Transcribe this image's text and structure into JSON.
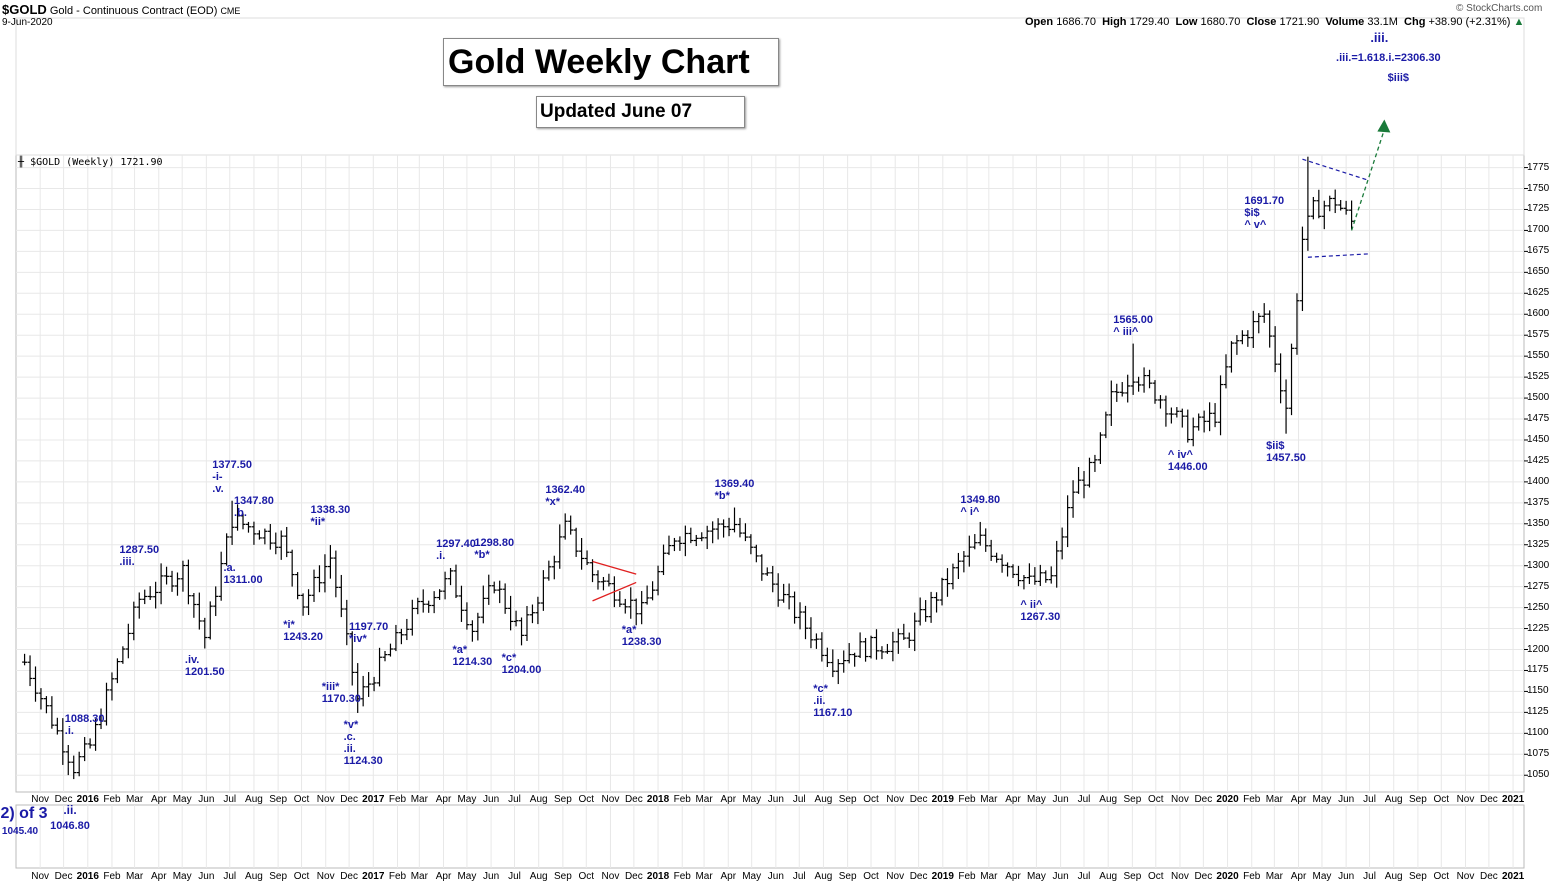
{
  "header": {
    "symbol": "$GOLD",
    "description": "Gold - Continuous Contract (EOD)",
    "exchange": "CME",
    "date": "9-Jun-2020",
    "credit": "© StockCharts.com",
    "open_label": "Open",
    "open": "1686.70",
    "high_label": "High",
    "high": "1729.40",
    "low_label": "Low",
    "low": "1680.70",
    "close_label": "Close",
    "close": "1721.90",
    "volume_label": "Volume",
    "volume": "33.1M",
    "chg_label": "Chg",
    "chg": "+38.90 (+2.31%)"
  },
  "title": "Gold Weekly Chart",
  "subtitle": "Updated June 07",
  "plot_label": "$GOLD (Weekly) 1721.90",
  "lower_panel_text": [
    "2) of 3",
    ".ii."
  ],
  "colors": {
    "bars": "#000000",
    "annotations": "#1a1aa6",
    "triangle": "#e02020",
    "wedge": "#1a1aa6",
    "projection": "#1a7a3a",
    "grid": "#e8e8e8"
  },
  "chart_data": {
    "type": "ohlc",
    "ylim": [
      1030,
      1790
    ],
    "yticks": [
      1050,
      1075,
      1100,
      1125,
      1150,
      1175,
      1200,
      1225,
      1250,
      1275,
      1300,
      1325,
      1350,
      1375,
      1400,
      1425,
      1450,
      1475,
      1500,
      1525,
      1550,
      1575,
      1600,
      1625,
      1650,
      1675,
      1700,
      1725,
      1750,
      1775
    ],
    "xticks": [
      {
        "label": "Nov",
        "date": "2015-11-01"
      },
      {
        "label": "Dec",
        "date": "2015-12-01"
      },
      {
        "label": "2016",
        "date": "2016-01-01",
        "bold": true
      },
      {
        "label": "Feb",
        "date": "2016-02-01"
      },
      {
        "label": "Mar",
        "date": "2016-03-01"
      },
      {
        "label": "Apr",
        "date": "2016-04-01"
      },
      {
        "label": "May",
        "date": "2016-05-01"
      },
      {
        "label": "Jun",
        "date": "2016-06-01"
      },
      {
        "label": "Jul",
        "date": "2016-07-01"
      },
      {
        "label": "Aug",
        "date": "2016-08-01"
      },
      {
        "label": "Sep",
        "date": "2016-09-01"
      },
      {
        "label": "Oct",
        "date": "2016-10-01"
      },
      {
        "label": "Nov",
        "date": "2016-11-01"
      },
      {
        "label": "Dec",
        "date": "2016-12-01"
      },
      {
        "label": "2017",
        "date": "2017-01-01",
        "bold": true
      },
      {
        "label": "Feb",
        "date": "2017-02-01"
      },
      {
        "label": "Mar",
        "date": "2017-03-01"
      },
      {
        "label": "Apr",
        "date": "2017-04-01"
      },
      {
        "label": "May",
        "date": "2017-05-01"
      },
      {
        "label": "Jun",
        "date": "2017-06-01"
      },
      {
        "label": "Jul",
        "date": "2017-07-01"
      },
      {
        "label": "Aug",
        "date": "2017-08-01"
      },
      {
        "label": "Sep",
        "date": "2017-09-01"
      },
      {
        "label": "Oct",
        "date": "2017-10-01"
      },
      {
        "label": "Nov",
        "date": "2017-11-01"
      },
      {
        "label": "Dec",
        "date": "2017-12-01"
      },
      {
        "label": "2018",
        "date": "2018-01-01",
        "bold": true
      },
      {
        "label": "Feb",
        "date": "2018-02-01"
      },
      {
        "label": "Mar",
        "date": "2018-03-01"
      },
      {
        "label": "Apr",
        "date": "2018-04-01"
      },
      {
        "label": "May",
        "date": "2018-05-01"
      },
      {
        "label": "Jun",
        "date": "2018-06-01"
      },
      {
        "label": "Jul",
        "date": "2018-07-01"
      },
      {
        "label": "Aug",
        "date": "2018-08-01"
      },
      {
        "label": "Sep",
        "date": "2018-09-01"
      },
      {
        "label": "Oct",
        "date": "2018-10-01"
      },
      {
        "label": "Nov",
        "date": "2018-11-01"
      },
      {
        "label": "Dec",
        "date": "2018-12-01"
      },
      {
        "label": "2019",
        "date": "2019-01-01",
        "bold": true
      },
      {
        "label": "Feb",
        "date": "2019-02-01"
      },
      {
        "label": "Mar",
        "date": "2019-03-01"
      },
      {
        "label": "Apr",
        "date": "2019-04-01"
      },
      {
        "label": "May",
        "date": "2019-05-01"
      },
      {
        "label": "Jun",
        "date": "2019-06-01"
      },
      {
        "label": "Jul",
        "date": "2019-07-01"
      },
      {
        "label": "Aug",
        "date": "2019-08-01"
      },
      {
        "label": "Sep",
        "date": "2019-09-01"
      },
      {
        "label": "Oct",
        "date": "2019-10-01"
      },
      {
        "label": "Nov",
        "date": "2019-11-01"
      },
      {
        "label": "Dec",
        "date": "2019-12-01"
      },
      {
        "label": "2020",
        "date": "2020-01-01",
        "bold": true
      },
      {
        "label": "Feb",
        "date": "2020-02-01"
      },
      {
        "label": "Mar",
        "date": "2020-03-01"
      },
      {
        "label": "Apr",
        "date": "2020-04-01"
      },
      {
        "label": "May",
        "date": "2020-05-01"
      },
      {
        "label": "Jun",
        "date": "2020-06-01"
      },
      {
        "label": "Jul",
        "date": "2020-07-01"
      },
      {
        "label": "Aug",
        "date": "2020-08-01"
      },
      {
        "label": "Sep",
        "date": "2020-09-01"
      },
      {
        "label": "Oct",
        "date": "2020-10-01"
      },
      {
        "label": "Nov",
        "date": "2020-11-01"
      },
      {
        "label": "Dec",
        "date": "2020-12-01"
      },
      {
        "label": "2021",
        "date": "2021-01-01",
        "bold": true
      }
    ],
    "anchors": [
      {
        "date": "2015-10-12",
        "price": 1185
      },
      {
        "date": "2015-12-14",
        "price": 1060
      },
      {
        "date": "2016-01-04",
        "price": 1085
      },
      {
        "date": "2016-03-07",
        "price": 1260
      },
      {
        "date": "2016-05-02",
        "price": 1295
      },
      {
        "date": "2016-05-30",
        "price": 1215
      },
      {
        "date": "2016-07-04",
        "price": 1355
      },
      {
        "date": "2016-09-05",
        "price": 1330
      },
      {
        "date": "2016-10-03",
        "price": 1255
      },
      {
        "date": "2016-11-07",
        "price": 1310
      },
      {
        "date": "2016-12-12",
        "price": 1140
      },
      {
        "date": "2017-02-27",
        "price": 1250
      },
      {
        "date": "2017-04-10",
        "price": 1285
      },
      {
        "date": "2017-05-08",
        "price": 1225
      },
      {
        "date": "2017-06-05",
        "price": 1280
      },
      {
        "date": "2017-07-10",
        "price": 1215
      },
      {
        "date": "2017-09-04",
        "price": 1345
      },
      {
        "date": "2017-10-09",
        "price": 1290
      },
      {
        "date": "2017-12-11",
        "price": 1245
      },
      {
        "date": "2018-01-22",
        "price": 1335
      },
      {
        "date": "2018-04-09",
        "price": 1350
      },
      {
        "date": "2018-05-14",
        "price": 1295
      },
      {
        "date": "2018-08-13",
        "price": 1185
      },
      {
        "date": "2018-09-10",
        "price": 1200
      },
      {
        "date": "2018-11-12",
        "price": 1210
      },
      {
        "date": "2019-01-28",
        "price": 1310
      },
      {
        "date": "2019-02-18",
        "price": 1330
      },
      {
        "date": "2019-04-22",
        "price": 1280
      },
      {
        "date": "2019-05-20",
        "price": 1285
      },
      {
        "date": "2019-06-17",
        "price": 1390
      },
      {
        "date": "2019-07-15",
        "price": 1420
      },
      {
        "date": "2019-08-05",
        "price": 1500
      },
      {
        "date": "2019-09-02",
        "price": 1530
      },
      {
        "date": "2019-10-07",
        "price": 1500
      },
      {
        "date": "2019-11-11",
        "price": 1460
      },
      {
        "date": "2019-12-16",
        "price": 1480
      },
      {
        "date": "2020-01-06",
        "price": 1560
      },
      {
        "date": "2020-02-17",
        "price": 1600
      },
      {
        "date": "2020-03-16",
        "price": 1490
      },
      {
        "date": "2020-04-06",
        "price": 1690
      },
      {
        "date": "2020-04-20",
        "price": 1725
      },
      {
        "date": "2020-05-18",
        "price": 1735
      },
      {
        "date": "2020-06-08",
        "price": 1710
      }
    ],
    "extremes": [
      {
        "date": "2015-12-14",
        "low": 1045.4
      },
      {
        "date": "2016-07-04",
        "high": 1377.5
      },
      {
        "date": "2016-12-12",
        "low": 1124.3
      },
      {
        "date": "2017-09-04",
        "high": 1362.4
      },
      {
        "date": "2018-04-09",
        "high": 1369.4
      },
      {
        "date": "2018-08-13",
        "low": 1167.1
      },
      {
        "date": "2019-09-02",
        "high": 1565.0
      },
      {
        "date": "2020-03-16",
        "low": 1457.5
      },
      {
        "date": "2020-04-13",
        "high": 1788.0
      }
    ],
    "triangle": [
      [
        [
          "2017-10-09",
          1305
        ],
        [
          "2017-12-04",
          1290
        ]
      ],
      [
        [
          "2017-10-09",
          1258
        ],
        [
          "2017-12-04",
          1280
        ]
      ]
    ],
    "wedge": [
      [
        [
          "2020-04-06",
          1785
        ],
        [
          "2020-06-29",
          1760
        ]
      ],
      [
        [
          "2020-04-13",
          1668
        ],
        [
          "2020-06-29",
          1672
        ]
      ]
    ],
    "projection": [
      [
        "2020-06-08",
        1700
      ],
      [
        "2020-07-20",
        1830
      ]
    ],
    "annotations": [
      {
        "date": "2015-12-28",
        "price": 1088,
        "lines": [
          "1088.30",
          ".i."
        ],
        "side": "above"
      },
      {
        "date": "2016-03-07",
        "price": 1290,
        "lines": [
          "1287.50",
          ".iii."
        ],
        "side": "above"
      },
      {
        "date": "2016-05-30",
        "price": 1202,
        "lines": [
          ".iv.",
          "1201.50"
        ],
        "side": "below"
      },
      {
        "date": "2016-07-04",
        "price": 1377,
        "lines": [
          "1377.50",
          "-i-",
          ".v."
        ],
        "side": "above"
      },
      {
        "date": "2016-08-01",
        "price": 1348,
        "lines": [
          "1347.80",
          ".b."
        ],
        "side": "above"
      },
      {
        "date": "2016-07-18",
        "price": 1311,
        "lines": [
          ".a.",
          "1311.00"
        ],
        "side": "below"
      },
      {
        "date": "2016-10-03",
        "price": 1243,
        "lines": [
          "*i*",
          "1243.20"
        ],
        "side": "below"
      },
      {
        "date": "2016-11-07",
        "price": 1338,
        "lines": [
          "1338.30",
          "*ii*"
        ],
        "side": "above"
      },
      {
        "date": "2016-11-21",
        "price": 1170,
        "lines": [
          "*iii*",
          "1170.30"
        ],
        "side": "below"
      },
      {
        "date": "2016-12-26",
        "price": 1198,
        "lines": [
          "1197.70",
          "*iv*"
        ],
        "side": "above"
      },
      {
        "date": "2016-12-19",
        "price": 1124,
        "lines": [
          "*v*",
          ".c.",
          ".ii.",
          "1124.30"
        ],
        "side": "below"
      },
      {
        "date": "2017-04-17",
        "price": 1297,
        "lines": [
          "1297.40",
          ".i."
        ],
        "side": "above"
      },
      {
        "date": "2017-05-08",
        "price": 1214,
        "lines": [
          "*a*",
          "1214.30"
        ],
        "side": "below"
      },
      {
        "date": "2017-06-05",
        "price": 1299,
        "lines": [
          "1298.80",
          "*b*"
        ],
        "side": "above"
      },
      {
        "date": "2017-07-10",
        "price": 1204,
        "lines": [
          "*c*",
          "1204.00"
        ],
        "side": "below"
      },
      {
        "date": "2017-09-04",
        "price": 1362,
        "lines": [
          "1362.40",
          "*x*"
        ],
        "side": "above"
      },
      {
        "date": "2017-12-11",
        "price": 1238,
        "lines": [
          "*a*",
          "1238.30"
        ],
        "side": "below"
      },
      {
        "date": "2018-04-09",
        "price": 1369,
        "lines": [
          "1369.40",
          "*b*"
        ],
        "side": "above"
      },
      {
        "date": "2018-08-13",
        "price": 1167,
        "lines": [
          "*c*",
          ".ii.",
          "1167.10"
        ],
        "side": "below"
      },
      {
        "date": "2019-02-18",
        "price": 1350,
        "lines": [
          "1349.80",
          "^ i^"
        ],
        "side": "above"
      },
      {
        "date": "2019-05-06",
        "price": 1267,
        "lines": [
          "^ ii^",
          "1267.30"
        ],
        "side": "below"
      },
      {
        "date": "2019-09-02",
        "price": 1565,
        "lines": [
          "1565.00",
          "^ iii^"
        ],
        "side": "above"
      },
      {
        "date": "2019-11-11",
        "price": 1446,
        "lines": [
          "^ iv^",
          "1446.00"
        ],
        "side": "below"
      },
      {
        "date": "2020-02-17",
        "price": 1692,
        "lines": [
          "1691.70",
          "$i$",
          "^ v^"
        ],
        "side": "above"
      },
      {
        "date": "2020-03-16",
        "price": 1457,
        "lines": [
          "$ii$",
          "1457.50"
        ],
        "side": "below"
      }
    ],
    "projection_labels": [
      ".iii.",
      ".iii.=1.618.i.=2306.30",
      "$iii$"
    ]
  }
}
